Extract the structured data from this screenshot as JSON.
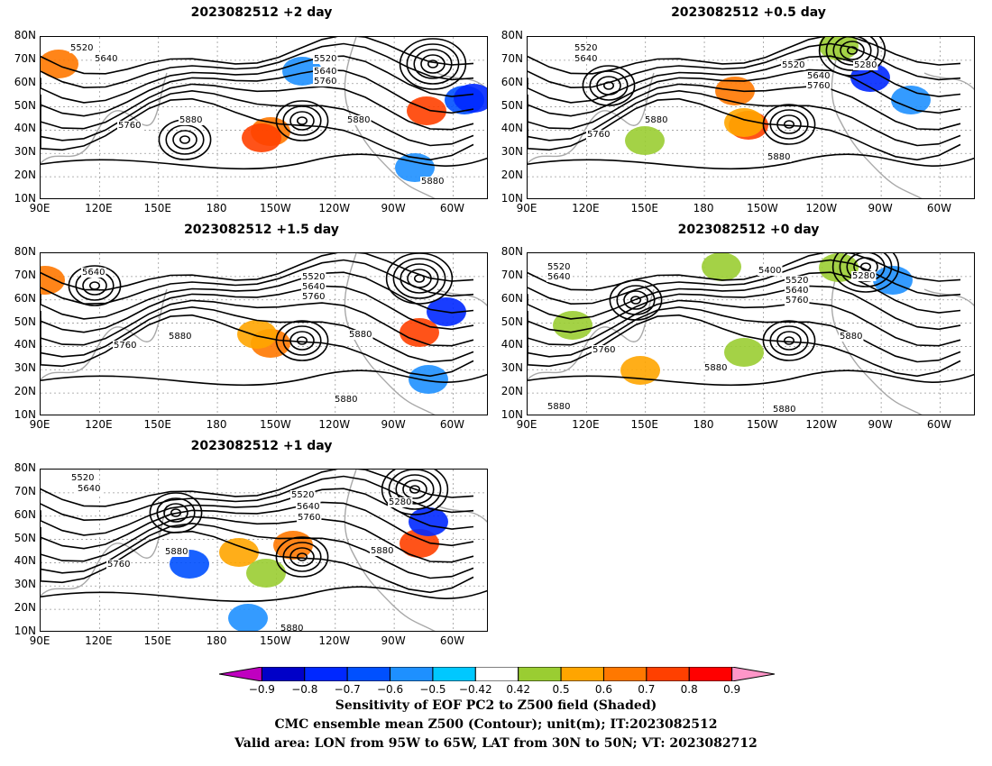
{
  "panels": [
    {
      "id": "p1",
      "title": "2023082512 +2 day"
    },
    {
      "id": "p2",
      "title": "2023082512 +0.5 day"
    },
    {
      "id": "p3",
      "title": "2023082512 +1.5 day"
    },
    {
      "id": "p4",
      "title": "2023082512 +0 day"
    },
    {
      "id": "p5",
      "title": "2023082512 +1 day"
    }
  ],
  "lat_ticks": [
    "80N",
    "70N",
    "60N",
    "50N",
    "40N",
    "30N",
    "20N",
    "10N"
  ],
  "lon_ticks": [
    "90E",
    "120E",
    "150E",
    "180",
    "150W",
    "120W",
    "90W",
    "60W"
  ],
  "contour_labels": {
    "p1": [
      "5520",
      "5640",
      "5520",
      "5640",
      "5760",
      "5760",
      "5880",
      "5880",
      "5880"
    ],
    "p2": [
      "5520",
      "5640",
      "5520",
      "5280",
      "5640",
      "5760",
      "5880",
      "5760",
      "5880"
    ],
    "p3": [
      "5640",
      "5520",
      "5640",
      "5760",
      "5880",
      "5760",
      "5880",
      "5880"
    ],
    "p4": [
      "5520",
      "5640",
      "5400",
      "5280",
      "5520",
      "5640",
      "5760",
      "5760",
      "5880",
      "5880",
      "5880",
      "5880"
    ],
    "p5": [
      "5520",
      "5640",
      "5520",
      "5640",
      "5280",
      "5760",
      "5880",
      "5760",
      "5880",
      "5880"
    ]
  },
  "colorbar": {
    "ticks": [
      "−0.9",
      "−0.8",
      "−0.7",
      "−0.6",
      "−0.5",
      "−0.42",
      "0.42",
      "0.5",
      "0.6",
      "0.7",
      "0.8",
      "0.9"
    ],
    "colors": [
      "#c000c0",
      "#0000c8",
      "#0028ff",
      "#0050ff",
      "#1e90ff",
      "#00c8ff",
      "#ffffff",
      "#9acd32",
      "#ffa500",
      "#ff7800",
      "#ff4000",
      "#ff0000",
      "#ff96c8"
    ]
  },
  "caption": {
    "line1": "Sensitivity of EOF PC2 to Z500 field (Shaded)",
    "line2": "CMC ensemble mean Z500 (Contour); unit(m); IT:2023082512",
    "line3": "Valid area: LON from 95W to 65W, LAT from 30N to 50N; VT: 2023082712"
  }
}
